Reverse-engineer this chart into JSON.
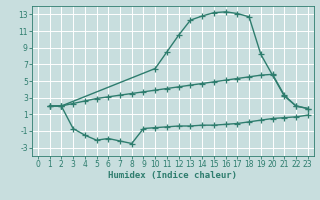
{
  "bg_color": "#c8dede",
  "grid_color": "#ffffff",
  "line_color": "#2e7d6e",
  "marker": "+",
  "markersize": 4,
  "linewidth": 1.0,
  "xlabel": "Humidex (Indice chaleur)",
  "xlabel_fontsize": 6.5,
  "tick_fontsize": 5.5,
  "xlim": [
    -0.5,
    23.5
  ],
  "ylim": [
    -4,
    14
  ],
  "yticks": [
    -3,
    -1,
    1,
    3,
    5,
    7,
    9,
    11,
    13
  ],
  "xticks": [
    0,
    1,
    2,
    3,
    4,
    5,
    6,
    7,
    8,
    9,
    10,
    11,
    12,
    13,
    14,
    15,
    16,
    17,
    18,
    19,
    20,
    21,
    22,
    23
  ],
  "line1_x": [
    1,
    2,
    10,
    11,
    12,
    13,
    14,
    15,
    16,
    17,
    18,
    19,
    20,
    21,
    22,
    23
  ],
  "line1_y": [
    2,
    2,
    6.5,
    8.5,
    10.5,
    12.3,
    12.8,
    13.2,
    13.3,
    13.1,
    12.7,
    8.2,
    5.7,
    3.2,
    2.0,
    1.7
  ],
  "line2_x": [
    1,
    2,
    3,
    4,
    5,
    6,
    7,
    8,
    9,
    10,
    11,
    12,
    13,
    14,
    15,
    16,
    17,
    18,
    19,
    20,
    21,
    22,
    23
  ],
  "line2_y": [
    2,
    2,
    2.3,
    2.6,
    2.9,
    3.1,
    3.3,
    3.5,
    3.7,
    3.9,
    4.1,
    4.3,
    4.5,
    4.7,
    4.9,
    5.1,
    5.3,
    5.5,
    5.7,
    5.8,
    3.3,
    2.0,
    1.7
  ],
  "line3_x": [
    1,
    2,
    3,
    4,
    5,
    6,
    7,
    8,
    9,
    10,
    11,
    12,
    13,
    14,
    15,
    16,
    17,
    18,
    19,
    20,
    21,
    22,
    23
  ],
  "line3_y": [
    2,
    2,
    -0.7,
    -1.5,
    -2.1,
    -1.9,
    -2.2,
    -2.5,
    -0.7,
    -0.6,
    -0.5,
    -0.4,
    -0.4,
    -0.3,
    -0.3,
    -0.2,
    -0.1,
    0.1,
    0.3,
    0.5,
    0.6,
    0.7,
    0.9
  ]
}
